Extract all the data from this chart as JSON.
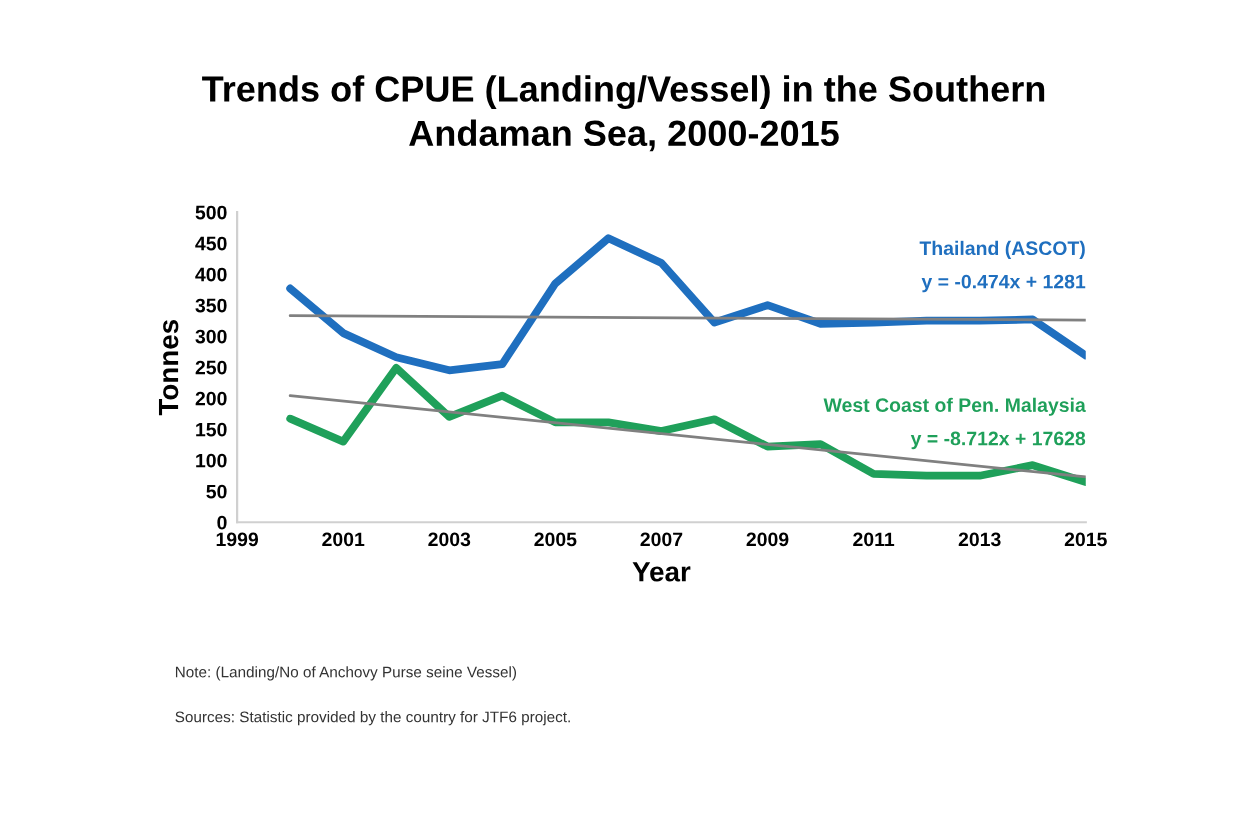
{
  "chart_data": {
    "type": "line",
    "title": "Trends of CPUE (Landing/Vessel) in the Southern\nAndaman Sea, 2000-2015",
    "xlabel": "Year",
    "ylabel": "Tonnes",
    "x": [
      2000,
      2001,
      2002,
      2003,
      2004,
      2005,
      2006,
      2007,
      2008,
      2009,
      2010,
      2011,
      2012,
      2013,
      2014,
      2015
    ],
    "xlim": [
      1999,
      2015
    ],
    "xticks": [
      1999,
      2001,
      2003,
      2005,
      2007,
      2009,
      2011,
      2013,
      2015
    ],
    "ylim": [
      0,
      500
    ],
    "yticks": [
      0,
      50,
      100,
      150,
      200,
      250,
      300,
      350,
      400,
      450,
      500
    ],
    "grid": false,
    "legend": false,
    "line_style": "solid",
    "marker": "none",
    "series": [
      {
        "name": "Thailand (ASCOT)",
        "color": "#1f6fbf",
        "values": [
          377,
          305,
          266,
          245,
          255,
          385,
          458,
          418,
          322,
          350,
          320,
          322,
          325,
          325,
          327,
          269
        ]
      },
      {
        "name": "West Coast of Pen. Malaysia",
        "color": "#1fa05a",
        "values": [
          167,
          130,
          249,
          170,
          204,
          161,
          161,
          147,
          166,
          122,
          126,
          78,
          75,
          75,
          92,
          65
        ]
      },
      {
        "type": "line",
        "color": "#808080",
        "values": [
          333,
          null,
          null,
          null,
          null,
          null,
          null,
          null,
          null,
          null,
          null,
          null,
          null,
          null,
          null,
          326
        ]
      },
      {
        "type": "line",
        "color": "#808080",
        "values": [
          204,
          null,
          null,
          null,
          null,
          null,
          null,
          null,
          null,
          null,
          null,
          null,
          null,
          null,
          null,
          73
        ]
      }
    ],
    "annotations": [
      {
        "text": "y = -0.474x + 1281",
        "x": 2015,
        "y": 326
      },
      {
        "text": "y = -8.712x + 17628",
        "x": 2015,
        "y": 73
      },
      "Note: (Landing/No of Anchovy Purse seine Vessel)",
      "Sources: Statistic provided by the country for JTF6 project."
    ]
  }
}
